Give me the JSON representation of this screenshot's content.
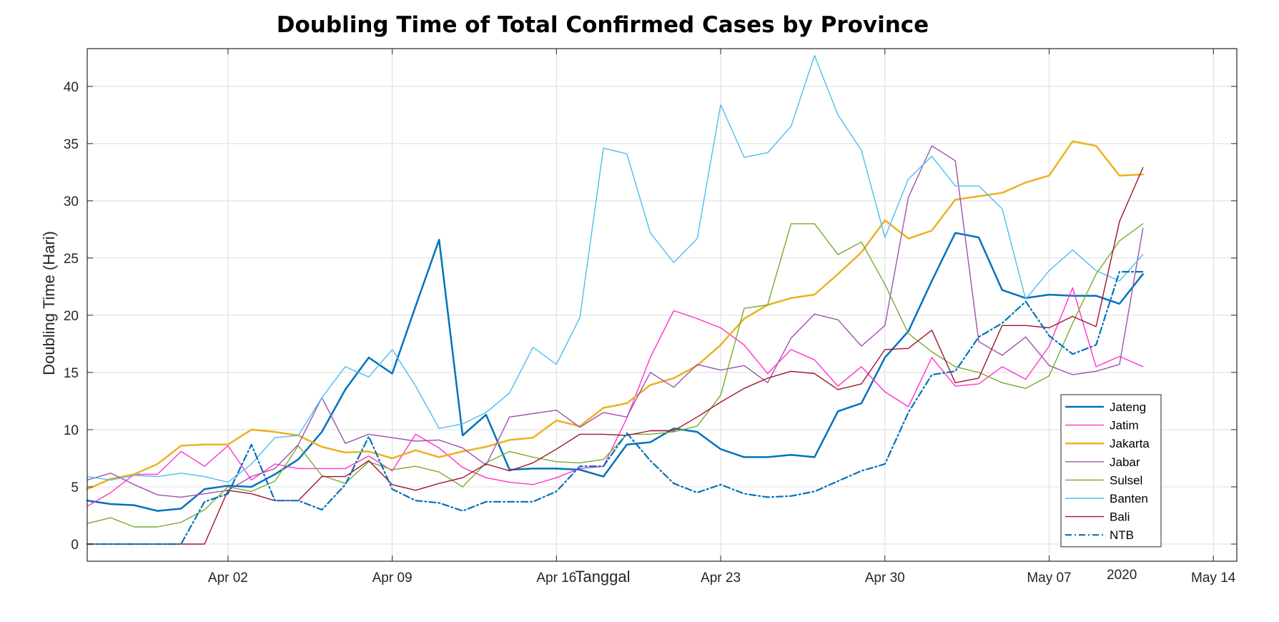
{
  "chart_data": {
    "type": "line",
    "title": "Doubling Time of Total Confirmed Cases by Province",
    "xlabel": "Tanggal",
    "ylabel": "Doubling Time (Hari)",
    "year_label": "2020",
    "x_tick_labels": [
      "Apr 02",
      "Apr 09",
      "Apr 16",
      "Apr 23",
      "Apr 30",
      "May 07",
      "May 14"
    ],
    "x_tick_dates": [
      "2020-04-02",
      "2020-04-09",
      "2020-04-16",
      "2020-04-23",
      "2020-04-30",
      "2020-05-07",
      "2020-05-14"
    ],
    "y_ticks": [
      0,
      5,
      10,
      15,
      20,
      25,
      30,
      35,
      40
    ],
    "xlim": [
      "2020-03-27",
      "2020-05-15"
    ],
    "ylim": [
      -1.5,
      43.3
    ],
    "grid": true,
    "legend_position": "bottom-right",
    "x": [
      "2020-03-27",
      "2020-03-28",
      "2020-03-29",
      "2020-03-30",
      "2020-03-31",
      "2020-04-01",
      "2020-04-02",
      "2020-04-03",
      "2020-04-04",
      "2020-04-05",
      "2020-04-06",
      "2020-04-07",
      "2020-04-08",
      "2020-04-09",
      "2020-04-10",
      "2020-04-11",
      "2020-04-12",
      "2020-04-13",
      "2020-04-14",
      "2020-04-15",
      "2020-04-16",
      "2020-04-17",
      "2020-04-18",
      "2020-04-19",
      "2020-04-20",
      "2020-04-21",
      "2020-04-22",
      "2020-04-23",
      "2020-04-24",
      "2020-04-25",
      "2020-04-26",
      "2020-04-27",
      "2020-04-28",
      "2020-04-29",
      "2020-04-30",
      "2020-05-01",
      "2020-05-02",
      "2020-05-03",
      "2020-05-04",
      "2020-05-05",
      "2020-05-06",
      "2020-05-07",
      "2020-05-08",
      "2020-05-09",
      "2020-05-10",
      "2020-05-11"
    ],
    "series": [
      {
        "name": "Jateng",
        "color": "#0072BD",
        "width": 2.5,
        "dash": "",
        "values": [
          3.8,
          3.5,
          3.4,
          2.9,
          3.1,
          4.8,
          5.1,
          5.0,
          6.1,
          7.4,
          9.8,
          13.5,
          16.3,
          14.9,
          20.8,
          26.6,
          9.5,
          11.3,
          6.5,
          6.6,
          6.6,
          6.5,
          5.9,
          8.7,
          8.9,
          10.1,
          9.8,
          8.3,
          7.6,
          7.6,
          7.8,
          7.6,
          11.6,
          12.3,
          16.3,
          18.6,
          23.0,
          27.2,
          26.8,
          22.2,
          21.5,
          21.8,
          21.7,
          21.7,
          21.0,
          23.6
        ]
      },
      {
        "name": "Jatim",
        "color": "#FF33CC",
        "width": 1.4,
        "dash": "",
        "values": [
          3.3,
          4.5,
          6.1,
          6.1,
          8.1,
          6.8,
          8.6,
          5.6,
          7.0,
          6.6,
          6.6,
          6.6,
          7.7,
          6.4,
          9.6,
          8.4,
          6.7,
          5.8,
          5.4,
          5.2,
          5.8,
          6.6,
          6.8,
          11.0,
          16.3,
          20.4,
          19.7,
          18.9,
          17.4,
          14.9,
          17.0,
          16.1,
          13.8,
          15.5,
          13.3,
          12.0,
          16.3,
          13.8,
          14.0,
          15.5,
          14.4,
          17.3,
          22.4,
          15.5,
          16.4,
          15.5
        ]
      },
      {
        "name": "Jakarta",
        "color": "#EDB120",
        "width": 2.5,
        "dash": "",
        "values": [
          4.8,
          5.7,
          6.1,
          7.0,
          8.6,
          8.7,
          8.7,
          10.0,
          9.8,
          9.5,
          8.5,
          8.0,
          8.1,
          7.5,
          8.2,
          7.6,
          8.1,
          8.5,
          9.1,
          9.3,
          10.8,
          10.3,
          11.9,
          12.3,
          13.9,
          14.5,
          15.6,
          17.4,
          19.7,
          20.9,
          21.5,
          21.8,
          23.6,
          25.5,
          28.3,
          26.7,
          27.4,
          30.1,
          30.4,
          30.7,
          31.6,
          32.2,
          35.2,
          34.8,
          32.2,
          32.3
        ]
      },
      {
        "name": "Jabar",
        "color": "#A050B0",
        "width": 1.4,
        "dash": "",
        "values": [
          5.6,
          6.2,
          5.2,
          4.3,
          4.1,
          4.4,
          4.7,
          5.9,
          6.6,
          8.7,
          12.8,
          8.8,
          9.6,
          9.3,
          9.0,
          9.1,
          8.4,
          6.9,
          11.1,
          11.4,
          11.7,
          10.2,
          11.5,
          11.1,
          15.0,
          13.7,
          15.7,
          15.2,
          15.6,
          14.1,
          18.0,
          20.1,
          19.6,
          17.3,
          19.1,
          30.3,
          34.8,
          33.5,
          17.7,
          16.5,
          18.1,
          15.6,
          14.8,
          15.1,
          15.7,
          27.6
        ]
      },
      {
        "name": "Sulsel",
        "color": "#77AC30",
        "width": 1.4,
        "dash": "",
        "values": [
          1.8,
          2.3,
          1.5,
          1.5,
          1.9,
          3.0,
          5.0,
          4.6,
          5.5,
          8.6,
          6.0,
          5.3,
          7.2,
          6.5,
          6.8,
          6.3,
          5.0,
          7.1,
          8.1,
          7.6,
          7.2,
          7.1,
          7.4,
          9.6,
          9.6,
          9.8,
          10.3,
          13.0,
          20.6,
          20.9,
          28.0,
          28.0,
          25.3,
          26.4,
          22.7,
          18.4,
          16.8,
          15.5,
          15.0,
          14.1,
          13.6,
          14.7,
          19.3,
          23.6,
          26.5,
          28.0
        ]
      },
      {
        "name": "Banten",
        "color": "#4DBEEE",
        "width": 1.4,
        "dash": "",
        "values": [
          5.9,
          5.6,
          6.0,
          5.9,
          6.2,
          5.9,
          5.4,
          7.0,
          9.3,
          9.5,
          12.8,
          15.5,
          14.6,
          17.0,
          13.8,
          10.1,
          10.5,
          11.5,
          13.2,
          17.2,
          15.7,
          19.8,
          34.6,
          34.1,
          27.2,
          24.6,
          26.7,
          38.4,
          33.8,
          34.2,
          36.5,
          42.7,
          37.5,
          34.4,
          26.8,
          31.9,
          33.9,
          31.3,
          31.3,
          29.3,
          21.4,
          23.9,
          25.7,
          23.9,
          23.0,
          25.3
        ]
      },
      {
        "name": "Bali",
        "color": "#A2142F",
        "width": 1.4,
        "dash": "",
        "values": [
          0,
          0,
          0,
          0,
          0,
          0,
          4.7,
          4.4,
          3.8,
          3.8,
          5.9,
          5.9,
          7.3,
          5.2,
          4.7,
          5.3,
          5.8,
          7.0,
          6.4,
          7.1,
          8.3,
          9.6,
          9.6,
          9.5,
          9.9,
          9.9,
          11.1,
          12.4,
          13.6,
          14.5,
          15.1,
          14.9,
          13.5,
          14.0,
          17.0,
          17.1,
          18.7,
          14.1,
          14.5,
          19.1,
          19.1,
          18.9,
          19.9,
          19.0,
          28.2,
          32.9
        ]
      },
      {
        "name": "NTB",
        "color": "#0072BD",
        "width": 2.2,
        "dash": "9,4,2,4",
        "values": [
          0,
          0,
          0,
          0,
          0,
          3.7,
          4.4,
          8.7,
          3.8,
          3.8,
          3.0,
          5.2,
          9.4,
          4.8,
          3.8,
          3.6,
          2.9,
          3.7,
          3.7,
          3.7,
          4.6,
          6.8,
          6.8,
          9.7,
          7.3,
          5.3,
          4.5,
          5.2,
          4.4,
          4.1,
          4.2,
          4.6,
          5.5,
          6.4,
          7.0,
          11.5,
          14.8,
          15.1,
          18.1,
          19.3,
          21.2,
          18.2,
          16.6,
          17.4,
          23.8,
          23.8
        ]
      }
    ]
  }
}
